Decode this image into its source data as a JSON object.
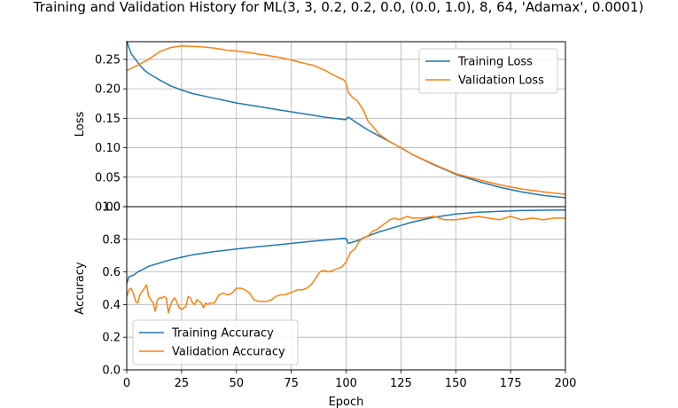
{
  "chart_data": [
    {
      "type": "line",
      "title": "Training and Validation History for ML(3, 3, 0.2, 0.2, 0.0, (0.0, 1.0), 8, 64, 'Adamax', 0.0001)",
      "xlabel": "",
      "ylabel": "Loss",
      "xlim": [
        0,
        200
      ],
      "ylim": [
        0,
        0.28
      ],
      "xticks": [],
      "yticks": [
        "0.00",
        "0.05",
        "0.10",
        "0.15",
        "0.20",
        "0.25"
      ],
      "grid": true,
      "legend_position": "upper right",
      "series": [
        {
          "name": "Training Loss",
          "color": "#1f77b4",
          "x": [
            0,
            1,
            2,
            4,
            6,
            8,
            10,
            15,
            20,
            25,
            30,
            40,
            50,
            60,
            70,
            80,
            90,
            99,
            100,
            101,
            105,
            110,
            115,
            120,
            125,
            130,
            140,
            150,
            160,
            170,
            180,
            190,
            200
          ],
          "y": [
            0.281,
            0.27,
            0.26,
            0.25,
            0.24,
            0.232,
            0.226,
            0.215,
            0.205,
            0.198,
            0.192,
            0.184,
            0.176,
            0.17,
            0.164,
            0.158,
            0.152,
            0.148,
            0.148,
            0.152,
            0.142,
            0.13,
            0.12,
            0.11,
            0.1,
            0.089,
            0.071,
            0.055,
            0.043,
            0.033,
            0.025,
            0.019,
            0.015
          ]
        },
        {
          "name": "Validation Loss",
          "color": "#ff7f0e",
          "x": [
            0,
            5,
            10,
            15,
            20,
            25,
            30,
            35,
            40,
            45,
            50,
            55,
            60,
            65,
            70,
            75,
            80,
            85,
            90,
            95,
            99,
            100,
            101,
            103,
            105,
            108,
            110,
            113,
            115,
            120,
            125,
            130,
            140,
            150,
            160,
            170,
            180,
            190,
            200
          ],
          "y": [
            0.231,
            0.24,
            0.25,
            0.263,
            0.27,
            0.273,
            0.272,
            0.271,
            0.269,
            0.266,
            0.264,
            0.262,
            0.259,
            0.256,
            0.253,
            0.249,
            0.244,
            0.24,
            0.232,
            0.222,
            0.215,
            0.21,
            0.194,
            0.185,
            0.18,
            0.163,
            0.145,
            0.133,
            0.123,
            0.11,
            0.1,
            0.089,
            0.072,
            0.056,
            0.046,
            0.037,
            0.03,
            0.025,
            0.021
          ]
        }
      ]
    },
    {
      "type": "line",
      "title": "",
      "xlabel": "Epoch",
      "ylabel": "Accuracy",
      "xlim": [
        0,
        200
      ],
      "ylim": [
        0,
        1.0
      ],
      "xticks": [
        "0",
        "25",
        "50",
        "75",
        "100",
        "125",
        "150",
        "175",
        "200"
      ],
      "yticks": [
        "0.0",
        "0.2",
        "0.4",
        "0.6",
        "0.8",
        "1.0"
      ],
      "grid": true,
      "legend_position": "lower left",
      "series": [
        {
          "name": "Training Accuracy",
          "color": "#1f77b4",
          "x": [
            0,
            1,
            3,
            5,
            8,
            10,
            15,
            20,
            25,
            30,
            40,
            50,
            60,
            70,
            80,
            90,
            99,
            100,
            101,
            105,
            110,
            115,
            120,
            125,
            130,
            140,
            150,
            160,
            170,
            180,
            190,
            200
          ],
          "y": [
            0.53,
            0.57,
            0.58,
            0.6,
            0.62,
            0.635,
            0.655,
            0.675,
            0.69,
            0.705,
            0.725,
            0.74,
            0.755,
            0.768,
            0.782,
            0.795,
            0.806,
            0.806,
            0.775,
            0.79,
            0.82,
            0.845,
            0.865,
            0.885,
            0.905,
            0.935,
            0.955,
            0.965,
            0.972,
            0.976,
            0.978,
            0.98
          ]
        },
        {
          "name": "Validation Accuracy",
          "color": "#ff7f0e",
          "x": [
            0,
            1,
            2,
            3,
            4,
            5,
            6,
            7,
            8,
            9,
            10,
            11,
            12,
            13,
            14,
            15,
            16,
            17,
            18,
            19,
            20,
            21,
            22,
            23,
            24,
            25,
            26,
            27,
            28,
            29,
            30,
            31,
            32,
            33,
            34,
            35,
            36,
            37,
            38,
            39,
            40,
            42,
            44,
            46,
            48,
            50,
            52,
            54,
            56,
            58,
            60,
            62,
            64,
            66,
            68,
            70,
            72,
            74,
            76,
            78,
            80,
            82,
            84,
            86,
            88,
            90,
            92,
            94,
            96,
            98,
            100,
            102,
            104,
            106,
            108,
            110,
            112,
            114,
            116,
            118,
            120,
            122,
            124,
            126,
            128,
            130,
            135,
            140,
            145,
            150,
            155,
            160,
            165,
            170,
            175,
            180,
            185,
            190,
            195,
            200
          ],
          "y": [
            0.45,
            0.49,
            0.5,
            0.47,
            0.42,
            0.41,
            0.46,
            0.48,
            0.5,
            0.52,
            0.45,
            0.43,
            0.41,
            0.36,
            0.43,
            0.44,
            0.44,
            0.45,
            0.44,
            0.35,
            0.4,
            0.43,
            0.44,
            0.41,
            0.38,
            0.37,
            0.38,
            0.39,
            0.45,
            0.44,
            0.41,
            0.4,
            0.43,
            0.42,
            0.41,
            0.38,
            0.41,
            0.4,
            0.41,
            0.41,
            0.41,
            0.46,
            0.47,
            0.46,
            0.47,
            0.5,
            0.5,
            0.49,
            0.47,
            0.43,
            0.42,
            0.42,
            0.42,
            0.43,
            0.45,
            0.46,
            0.46,
            0.47,
            0.48,
            0.49,
            0.49,
            0.5,
            0.52,
            0.56,
            0.6,
            0.61,
            0.6,
            0.61,
            0.62,
            0.63,
            0.66,
            0.72,
            0.74,
            0.79,
            0.81,
            0.82,
            0.85,
            0.86,
            0.88,
            0.9,
            0.92,
            0.93,
            0.92,
            0.93,
            0.94,
            0.93,
            0.93,
            0.94,
            0.92,
            0.92,
            0.93,
            0.94,
            0.93,
            0.92,
            0.94,
            0.92,
            0.93,
            0.92,
            0.93,
            0.93
          ]
        }
      ]
    }
  ]
}
